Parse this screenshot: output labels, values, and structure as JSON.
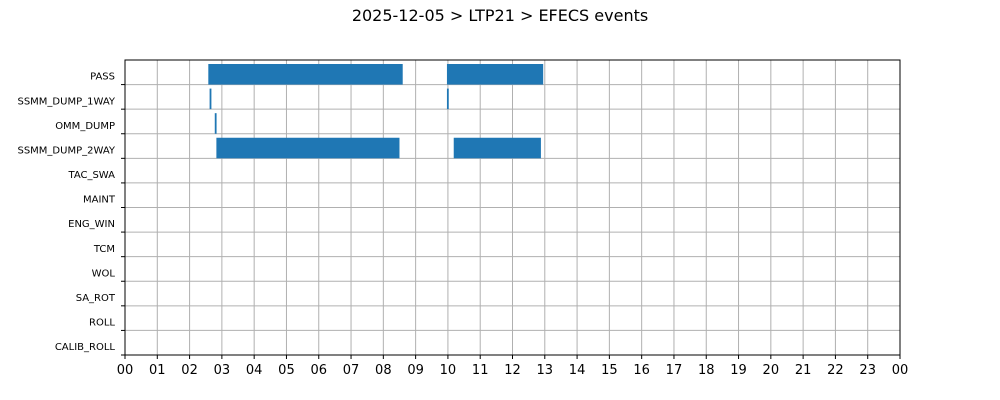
{
  "chart_data": {
    "type": "bar",
    "orientation": "horizontal-timeline",
    "title": "2025-12-05 > LTP21 > EFECS events",
    "xlabel": "",
    "ylabel": "",
    "x_ticks": [
      "00",
      "01",
      "02",
      "03",
      "04",
      "05",
      "06",
      "07",
      "08",
      "09",
      "10",
      "11",
      "12",
      "13",
      "14",
      "15",
      "16",
      "17",
      "18",
      "19",
      "20",
      "21",
      "22",
      "23",
      "00"
    ],
    "xlim": [
      0,
      24
    ],
    "grid": true,
    "categories": [
      "PASS",
      "SSMM_DUMP_1WAY",
      "OMM_DUMP",
      "SSMM_DUMP_2WAY",
      "TAC_SWA",
      "MAINT",
      "ENG_WIN",
      "TCM",
      "WOL",
      "SA_ROT",
      "ROLL",
      "CALIB_ROLL"
    ],
    "bar_color": "#1f77b4",
    "intervals": [
      {
        "category": "PASS",
        "start": 2.58,
        "end": 8.6
      },
      {
        "category": "PASS",
        "start": 9.97,
        "end": 12.95
      },
      {
        "category": "SSMM_DUMP_1WAY",
        "start": 2.62,
        "end": 2.67
      },
      {
        "category": "SSMM_DUMP_1WAY",
        "start": 9.97,
        "end": 10.02
      },
      {
        "category": "OMM_DUMP",
        "start": 2.78,
        "end": 2.83
      },
      {
        "category": "SSMM_DUMP_2WAY",
        "start": 2.83,
        "end": 8.5
      },
      {
        "category": "SSMM_DUMP_2WAY",
        "start": 10.18,
        "end": 12.88
      }
    ]
  }
}
